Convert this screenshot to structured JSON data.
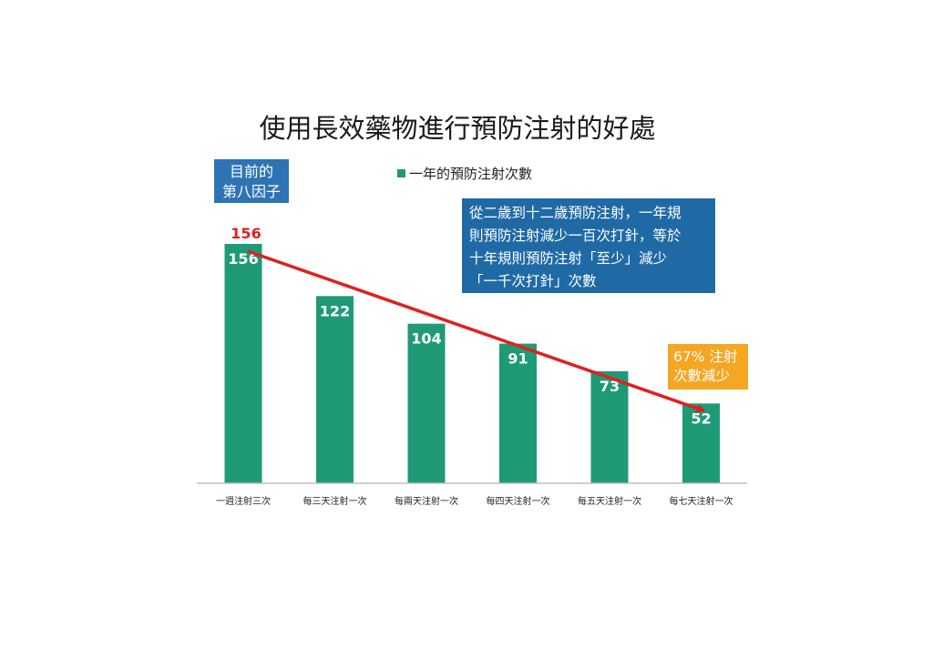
{
  "title": "使用長效藥物進行預防注射的好處",
  "factor_box": {
    "line1": "目前的",
    "line2": "第八因子"
  },
  "info_box": {
    "lines": [
      "從二歲到十二歲預防注射，一年規",
      "則預防注射減少一百次打針，等於",
      "十年規則預防注射「至少」減少",
      "「一千次打針」次數"
    ]
  },
  "reduction_box": {
    "line1": "67% 注射",
    "line2": "次數減少"
  },
  "colors": {
    "bar": "#1f9a76",
    "arrow": "#e02020",
    "top_label": "#e02020",
    "factor_box": "#2e74b5",
    "info_box": "#1f6aa5",
    "reduction_box": "#f5a623"
  },
  "chart_data": {
    "type": "bar",
    "title": "使用長效藥物進行預防注射的好處",
    "categories": [
      "一週注射三次",
      "每三天注射一次",
      "每兩天注射一次",
      "每四天注射一次",
      "每五天注射一次",
      "每七天注射一次"
    ],
    "series": [
      {
        "name": "一年的預防注射次數",
        "values": [
          156,
          122,
          104,
          91,
          73,
          52
        ]
      }
    ],
    "top_annotation": "156",
    "ylim": [
      0,
      172
    ],
    "grid": false,
    "legend_position": "top-center",
    "trend_arrow": {
      "from": 156,
      "to": 52
    }
  }
}
